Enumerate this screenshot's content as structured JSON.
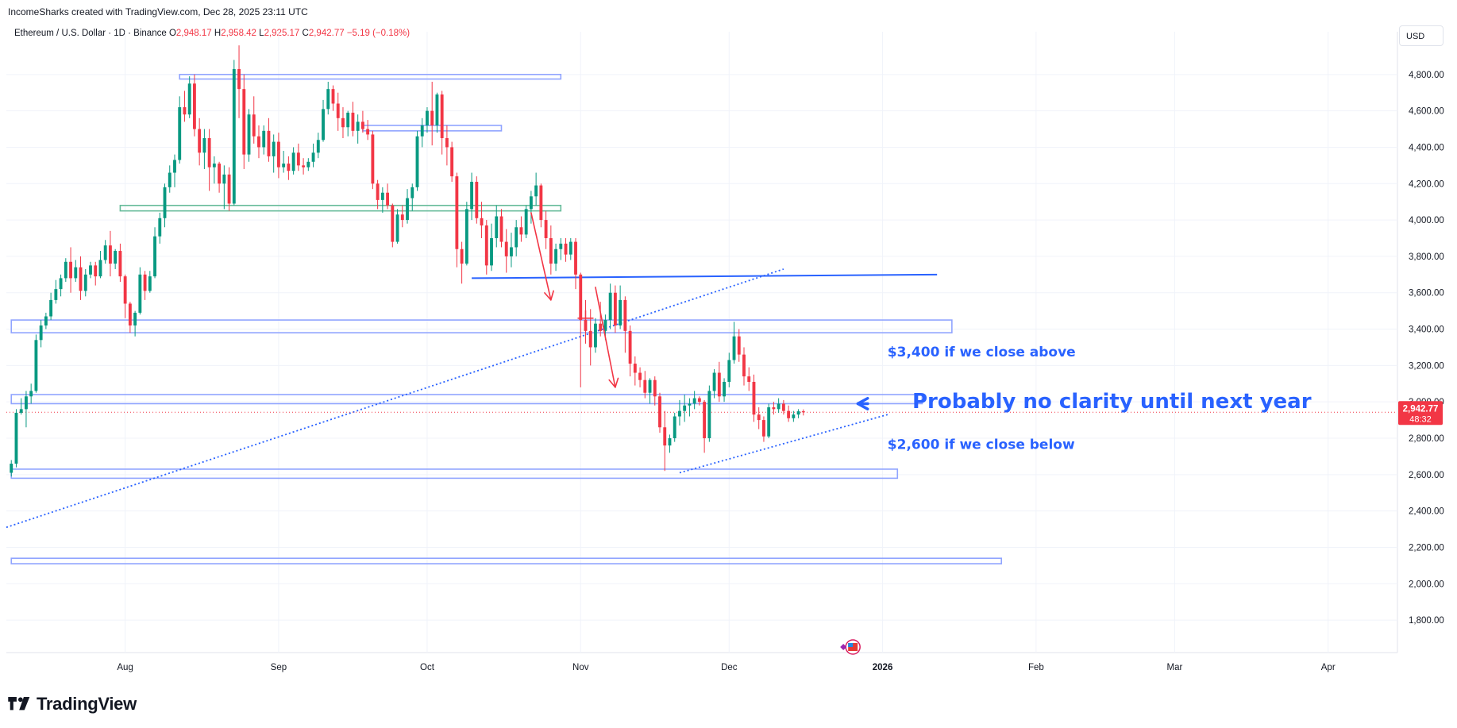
{
  "header": {
    "created_by": "IncomeSharks created with TradingView.com, Dec 28, 2025 23:11 UTC"
  },
  "legend": {
    "symbol": "Ethereum / U.S. Dollar · 1D · Binance",
    "o_label": "O",
    "o": "2,948.17",
    "h_label": "H",
    "h": "2,958.42",
    "l_label": "L",
    "l": "2,925.17",
    "c_label": "C",
    "c": "2,942.77",
    "change": "−5.19 (−0.18%)"
  },
  "currency": "USD",
  "price_tag": {
    "price": "2,942.77",
    "countdown": "48:32"
  },
  "footer": {
    "brand": "TradingView"
  },
  "colors": {
    "up": "#089981",
    "down": "#f23645",
    "annotation": "#2962ff",
    "zone_blue": "#90a4ff",
    "zone_green": "#66bb9a",
    "grid": "#f0f3fa"
  },
  "chart_data": {
    "type": "candlestick",
    "symbol": "ETHUSD",
    "timeframe": "1D",
    "ylim": [
      1700,
      5000
    ],
    "y_ticks": [
      1800,
      2000,
      2200,
      2400,
      2600,
      2800,
      3000,
      3200,
      3400,
      3600,
      3800,
      4000,
      4200,
      4400,
      4600,
      4800
    ],
    "y_tick_labels": [
      "1,800.00",
      "2,000.00",
      "2,200.00",
      "2,400.00",
      "2,600.00",
      "2,800.00",
      "3,000.00",
      "3,200.00",
      "3,400.00",
      "3,600.00",
      "3,800.00",
      "4,000.00",
      "4,200.00",
      "4,400.00",
      "4,600.00",
      "4,800.00"
    ],
    "x_range": [
      "2025-07-08",
      "2026-04-15"
    ],
    "x_ticks": [
      {
        "date": "2025-08-01",
        "label": "Aug"
      },
      {
        "date": "2025-09-01",
        "label": "Sep"
      },
      {
        "date": "2025-10-01",
        "label": "Oct"
      },
      {
        "date": "2025-11-01",
        "label": "Nov"
      },
      {
        "date": "2025-12-01",
        "label": "Dec"
      },
      {
        "date": "2026-01-01",
        "label": "2026"
      },
      {
        "date": "2026-02-01",
        "label": "Feb"
      },
      {
        "date": "2026-03-01",
        "label": "Mar"
      },
      {
        "date": "2026-04-01",
        "label": "Apr"
      }
    ],
    "start_date": "2025-07-09",
    "candles": [
      [
        2610,
        2680,
        2590,
        2660
      ],
      [
        2660,
        2960,
        2640,
        2940
      ],
      [
        2940,
        3020,
        2930,
        2960
      ],
      [
        2960,
        3060,
        2860,
        3030
      ],
      [
        3030,
        3100,
        2990,
        3060
      ],
      [
        3060,
        3370,
        3050,
        3340
      ],
      [
        3340,
        3450,
        3300,
        3420
      ],
      [
        3420,
        3490,
        3400,
        3470
      ],
      [
        3470,
        3600,
        3450,
        3560
      ],
      [
        3560,
        3670,
        3540,
        3620
      ],
      [
        3620,
        3700,
        3580,
        3680
      ],
      [
        3680,
        3790,
        3660,
        3770
      ],
      [
        3770,
        3850,
        3600,
        3680
      ],
      [
        3680,
        3780,
        3660,
        3740
      ],
      [
        3740,
        3800,
        3560,
        3610
      ],
      [
        3610,
        3730,
        3580,
        3700
      ],
      [
        3700,
        3770,
        3680,
        3750
      ],
      [
        3750,
        3770,
        3640,
        3690
      ],
      [
        3690,
        3830,
        3680,
        3780
      ],
      [
        3780,
        3890,
        3760,
        3860
      ],
      [
        3860,
        3940,
        3690,
        3760
      ],
      [
        3760,
        3840,
        3730,
        3830
      ],
      [
        3830,
        3870,
        3660,
        3690
      ],
      [
        3690,
        3700,
        3460,
        3540
      ],
      [
        3540,
        3550,
        3380,
        3420
      ],
      [
        3420,
        3500,
        3360,
        3490
      ],
      [
        3490,
        3740,
        3480,
        3700
      ],
      [
        3700,
        3720,
        3560,
        3610
      ],
      [
        3610,
        3720,
        3600,
        3690
      ],
      [
        3690,
        3960,
        3680,
        3910
      ],
      [
        3910,
        4040,
        3870,
        4010
      ],
      [
        4010,
        4200,
        3960,
        4180
      ],
      [
        4180,
        4300,
        4150,
        4260
      ],
      [
        4260,
        4360,
        4180,
        4330
      ],
      [
        4330,
        4680,
        4310,
        4620
      ],
      [
        4620,
        4710,
        4540,
        4580
      ],
      [
        4580,
        4790,
        4560,
        4750
      ],
      [
        4750,
        4800,
        4460,
        4500
      ],
      [
        4500,
        4560,
        4300,
        4370
      ],
      [
        4370,
        4500,
        4280,
        4450
      ],
      [
        4450,
        4500,
        4160,
        4290
      ],
      [
        4290,
        4350,
        4200,
        4310
      ],
      [
        4310,
        4320,
        4150,
        4200
      ],
      [
        4200,
        4300,
        4060,
        4250
      ],
      [
        4250,
        4290,
        4050,
        4090
      ],
      [
        4090,
        4880,
        4080,
        4830
      ],
      [
        4830,
        4960,
        4560,
        4720
      ],
      [
        4720,
        4800,
        4280,
        4360
      ],
      [
        4360,
        4610,
        4320,
        4580
      ],
      [
        4580,
        4680,
        4420,
        4460
      ],
      [
        4460,
        4520,
        4340,
        4400
      ],
      [
        4400,
        4520,
        4360,
        4490
      ],
      [
        4490,
        4560,
        4320,
        4350
      ],
      [
        4350,
        4470,
        4260,
        4430
      ],
      [
        4430,
        4480,
        4230,
        4290
      ],
      [
        4290,
        4380,
        4260,
        4310
      ],
      [
        4310,
        4350,
        4220,
        4270
      ],
      [
        4270,
        4400,
        4250,
        4370
      ],
      [
        4370,
        4420,
        4270,
        4300
      ],
      [
        4300,
        4340,
        4250,
        4290
      ],
      [
        4290,
        4340,
        4270,
        4320
      ],
      [
        4320,
        4420,
        4290,
        4370
      ],
      [
        4370,
        4480,
        4340,
        4440
      ],
      [
        4440,
        4660,
        4430,
        4610
      ],
      [
        4610,
        4760,
        4580,
        4720
      ],
      [
        4720,
        4740,
        4600,
        4640
      ],
      [
        4640,
        4700,
        4490,
        4560
      ],
      [
        4560,
        4620,
        4450,
        4510
      ],
      [
        4510,
        4600,
        4460,
        4590
      ],
      [
        4590,
        4650,
        4460,
        4490
      ],
      [
        4490,
        4580,
        4420,
        4540
      ],
      [
        4540,
        4600,
        4480,
        4500
      ],
      [
        4500,
        4550,
        4440,
        4470
      ],
      [
        4470,
        4490,
        4170,
        4200
      ],
      [
        4200,
        4220,
        4060,
        4110
      ],
      [
        4110,
        4180,
        4040,
        4150
      ],
      [
        4150,
        4200,
        4060,
        4080
      ],
      [
        4080,
        4090,
        3850,
        3880
      ],
      [
        3880,
        4060,
        3870,
        4030
      ],
      [
        4030,
        4080,
        3960,
        4000
      ],
      [
        4000,
        4170,
        3980,
        4120
      ],
      [
        4120,
        4200,
        4050,
        4180
      ],
      [
        4180,
        4490,
        4160,
        4460
      ],
      [
        4460,
        4560,
        4400,
        4520
      ],
      [
        4520,
        4620,
        4480,
        4600
      ],
      [
        4600,
        4760,
        4410,
        4520
      ],
      [
        4520,
        4700,
        4480,
        4690
      ],
      [
        4690,
        4710,
        4360,
        4450
      ],
      [
        4450,
        4520,
        4300,
        4400
      ],
      [
        4400,
        4430,
        4210,
        4240
      ],
      [
        4240,
        4260,
        3740,
        3840
      ],
      [
        3840,
        3880,
        3650,
        3760
      ],
      [
        3760,
        4100,
        3750,
        4060
      ],
      [
        4060,
        4260,
        4000,
        4210
      ],
      [
        4210,
        4240,
        3980,
        4010
      ],
      [
        4010,
        4100,
        3900,
        3970
      ],
      [
        3970,
        4000,
        3700,
        3750
      ],
      [
        3750,
        3980,
        3720,
        3900
      ],
      [
        3900,
        4080,
        3850,
        4020
      ],
      [
        4020,
        4060,
        3850,
        3880
      ],
      [
        3880,
        3950,
        3710,
        3800
      ],
      [
        3800,
        3930,
        3740,
        3850
      ],
      [
        3850,
        4000,
        3800,
        3960
      ],
      [
        3960,
        4020,
        3880,
        3920
      ],
      [
        3920,
        4080,
        3900,
        4060
      ],
      [
        4060,
        4160,
        3980,
        4130
      ],
      [
        4130,
        4260,
        4080,
        4190
      ],
      [
        4190,
        4200,
        3960,
        4000
      ],
      [
        4000,
        4050,
        3840,
        3900
      ],
      [
        3900,
        3970,
        3700,
        3760
      ],
      [
        3760,
        3870,
        3720,
        3840
      ],
      [
        3840,
        3900,
        3780,
        3870
      ],
      [
        3870,
        3900,
        3770,
        3810
      ],
      [
        3810,
        3900,
        3780,
        3880
      ],
      [
        3880,
        3900,
        3620,
        3700
      ],
      [
        3700,
        3710,
        3080,
        3450
      ],
      [
        3450,
        3560,
        3320,
        3390
      ],
      [
        3390,
        3510,
        3200,
        3300
      ],
      [
        3300,
        3460,
        3270,
        3430
      ],
      [
        3430,
        3550,
        3360,
        3390
      ],
      [
        3390,
        3480,
        3340,
        3450
      ],
      [
        3450,
        3650,
        3400,
        3600
      ],
      [
        3600,
        3640,
        3380,
        3420
      ],
      [
        3420,
        3640,
        3400,
        3560
      ],
      [
        3560,
        3580,
        3270,
        3390
      ],
      [
        3390,
        3420,
        3140,
        3210
      ],
      [
        3210,
        3250,
        3090,
        3160
      ],
      [
        3160,
        3190,
        3080,
        3120
      ],
      [
        3120,
        3170,
        3020,
        3050
      ],
      [
        3050,
        3130,
        2990,
        3120
      ],
      [
        3120,
        3140,
        2980,
        3030
      ],
      [
        3030,
        3050,
        2830,
        2860
      ],
      [
        2860,
        2950,
        2620,
        2760
      ],
      [
        2760,
        2820,
        2720,
        2800
      ],
      [
        2800,
        2940,
        2780,
        2920
      ],
      [
        2920,
        3010,
        2870,
        2950
      ],
      [
        2950,
        3040,
        2890,
        2980
      ],
      [
        2980,
        3020,
        2920,
        2990
      ],
      [
        2990,
        3060,
        2960,
        3020
      ],
      [
        3020,
        3030,
        2980,
        3000
      ],
      [
        3000,
        3010,
        2720,
        2800
      ],
      [
        2800,
        3090,
        2780,
        3060
      ],
      [
        3060,
        3180,
        3020,
        3160
      ],
      [
        3160,
        3220,
        3000,
        3030
      ],
      [
        3030,
        3130,
        3000,
        3110
      ],
      [
        3110,
        3270,
        3080,
        3230
      ],
      [
        3230,
        3440,
        3210,
        3360
      ],
      [
        3360,
        3400,
        3220,
        3260
      ],
      [
        3260,
        3300,
        3090,
        3140
      ],
      [
        3140,
        3190,
        3060,
        3110
      ],
      [
        3110,
        3150,
        2890,
        2930
      ],
      [
        2930,
        2970,
        2850,
        2900
      ],
      [
        2900,
        2920,
        2780,
        2810
      ],
      [
        2810,
        2990,
        2800,
        2970
      ],
      [
        2970,
        3000,
        2930,
        2960
      ],
      [
        2960,
        3020,
        2940,
        2990
      ],
      [
        2990,
        3010,
        2930,
        2950
      ],
      [
        2950,
        2980,
        2890,
        2910
      ],
      [
        2910,
        2950,
        2890,
        2930
      ],
      [
        2930,
        2960,
        2910,
        2948
      ],
      [
        2948.17,
        2958.42,
        2925.17,
        2942.77
      ]
    ],
    "last_price": 2942.77,
    "zones": [
      {
        "color": "blue",
        "from": "2025-08-12",
        "to": "2025-10-28",
        "low": 4775,
        "high": 4800
      },
      {
        "color": "blue",
        "from": "2025-09-18",
        "to": "2025-10-16",
        "low": 4490,
        "high": 4520
      },
      {
        "color": "green",
        "from": "2025-07-31",
        "to": "2025-10-28",
        "low": 4050,
        "high": 4080
      },
      {
        "color": "blue",
        "from": "2025-07-09",
        "to": "2026-01-15",
        "low": 3380,
        "high": 3450
      },
      {
        "color": "blue",
        "from": "2025-07-09",
        "to": "2026-01-09",
        "low": 2990,
        "high": 3040
      },
      {
        "color": "blue",
        "from": "2025-07-09",
        "to": "2026-01-04",
        "low": 2580,
        "high": 2630
      },
      {
        "color": "blue",
        "from": "2025-07-09",
        "to": "2026-01-25",
        "low": 2110,
        "high": 2140
      }
    ],
    "trendlines": [
      {
        "style": "solid",
        "from": [
          "2025-10-10",
          3680
        ],
        "to": [
          "2026-01-12",
          3700
        ]
      },
      {
        "style": "dotted",
        "from": [
          "2025-07-08",
          2310
        ],
        "to": [
          "2025-12-12",
          3730
        ]
      },
      {
        "style": "dotted",
        "from": [
          "2025-11-21",
          2610
        ],
        "to": [
          "2026-01-02",
          2930
        ]
      }
    ],
    "arrows": [
      {
        "color": "red",
        "from": [
          "2025-10-22",
          4040
        ],
        "to": [
          "2025-10-26",
          3560
        ]
      },
      {
        "color": "red",
        "from": [
          "2025-11-04",
          3630
        ],
        "to": [
          "2025-11-08",
          3080
        ]
      },
      {
        "color": "blue",
        "from": [
          "2025-12-29",
          2990
        ],
        "to": [
          "2025-12-27",
          2990
        ]
      }
    ],
    "annotations": [
      {
        "text": "$3,400 if we close above",
        "date": "2026-01-02",
        "price": 3250
      },
      {
        "text": "Probably no clarity until next year",
        "date": "2026-01-07",
        "price": 2965
      },
      {
        "text": "$2,600 if we close below",
        "date": "2026-01-02",
        "price": 2740
      }
    ]
  }
}
